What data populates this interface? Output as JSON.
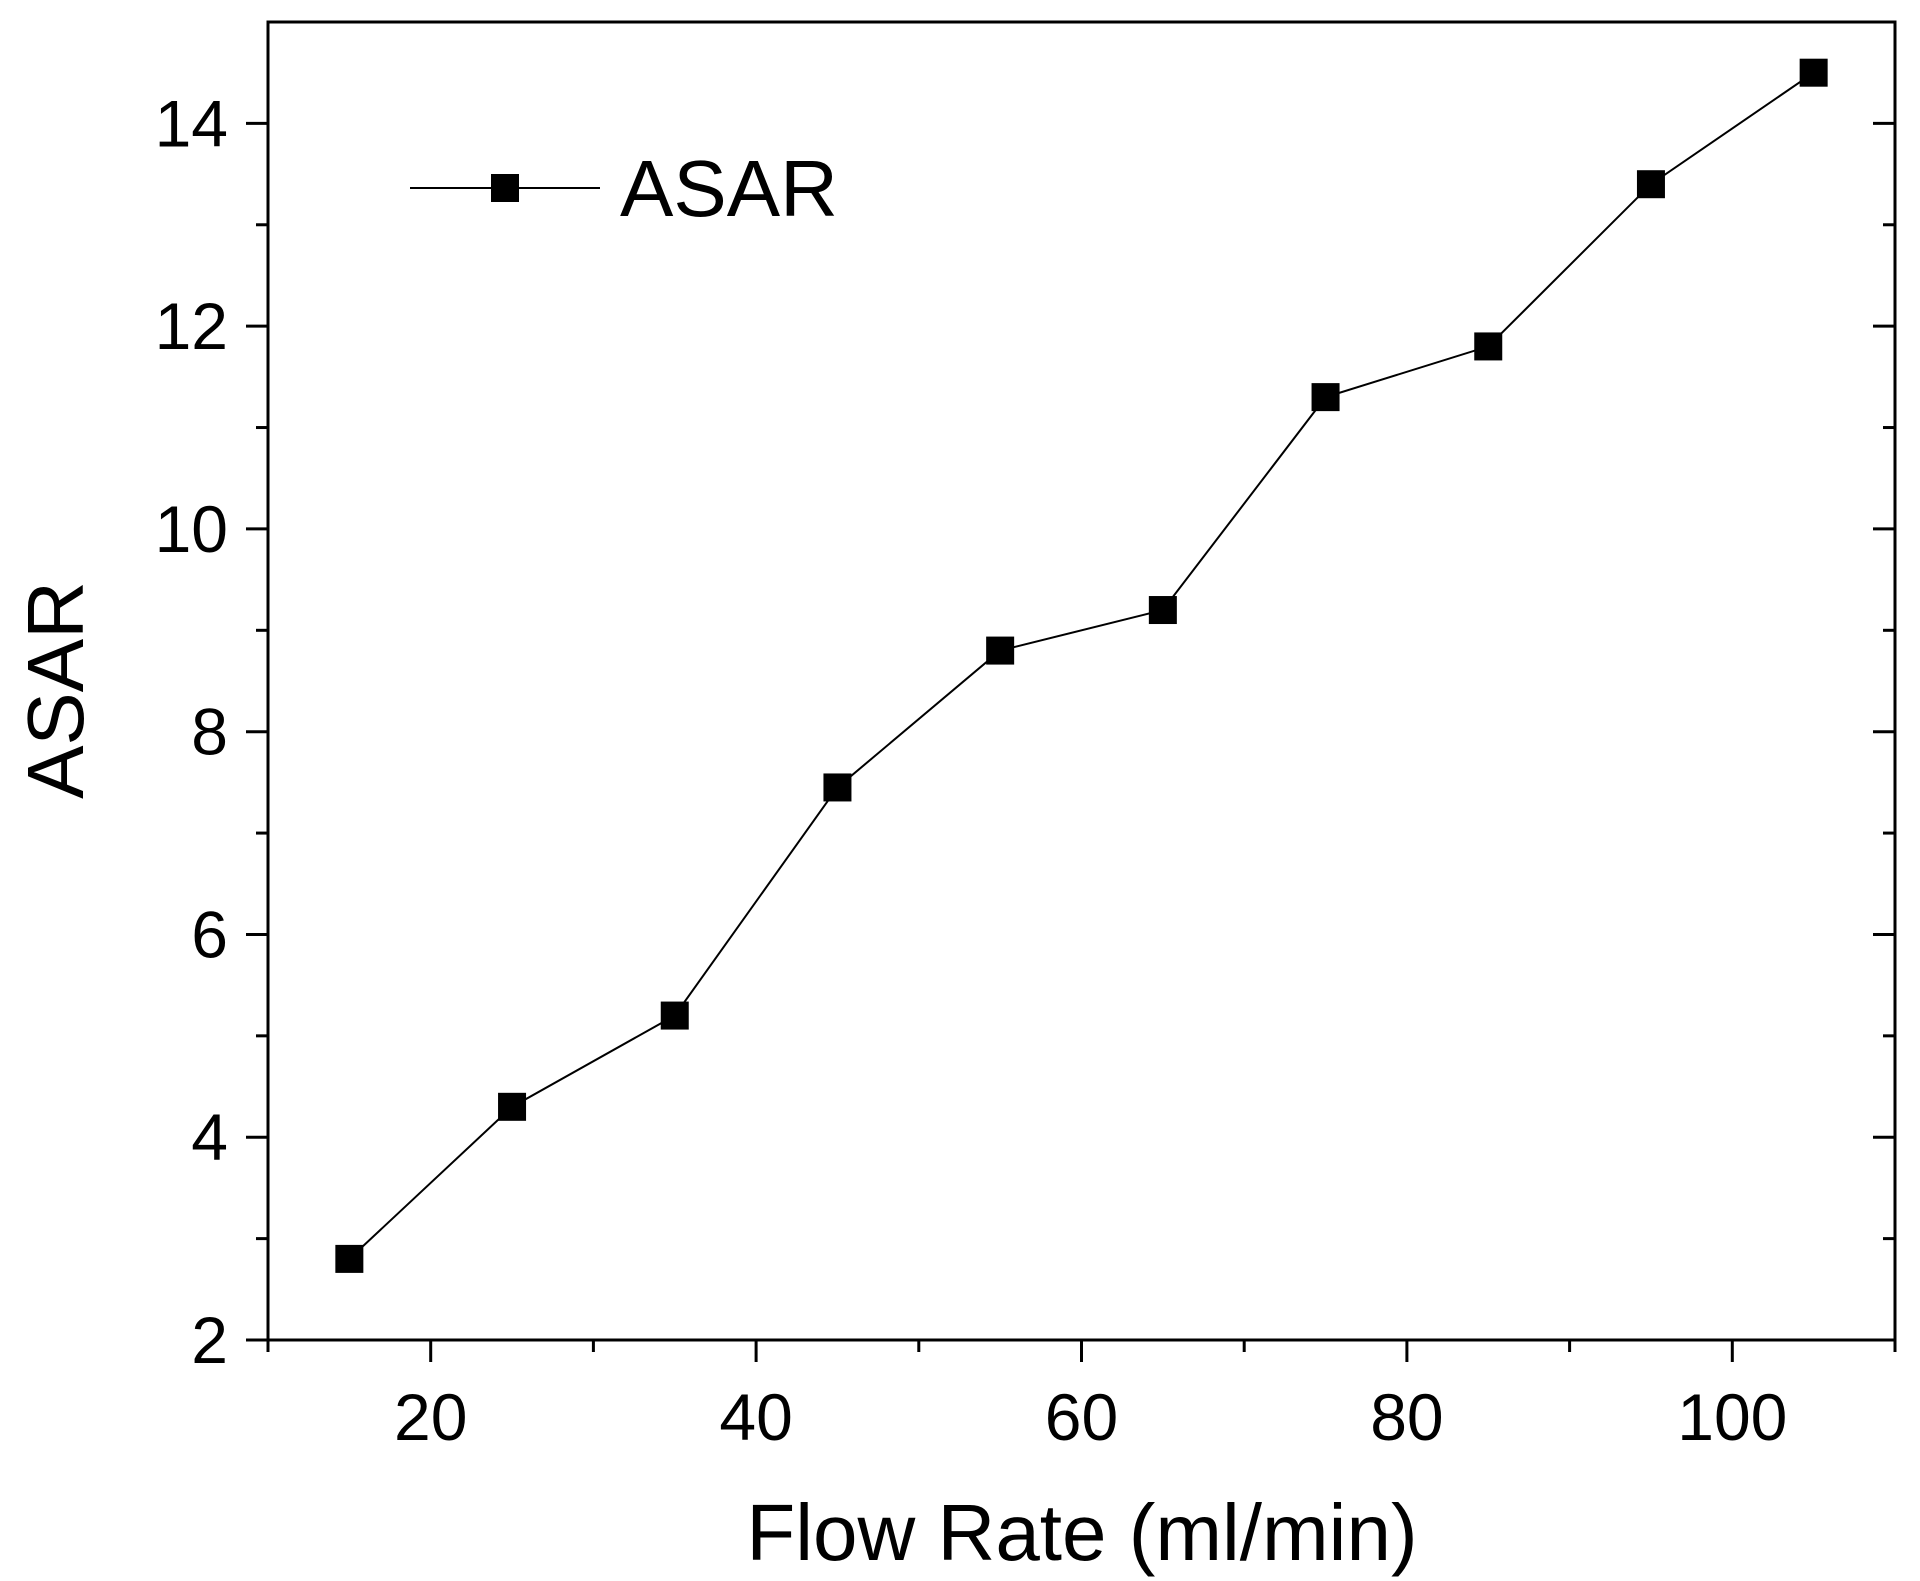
{
  "chart_data": {
    "type": "line",
    "title": "",
    "xlabel": "Flow Rate (ml/min)",
    "ylabel": "ASAR",
    "xlim": [
      10,
      110
    ],
    "ylim": [
      2,
      15
    ],
    "x_major_ticks": [
      20,
      40,
      60,
      80,
      100
    ],
    "x_minor_ticks": [
      10,
      30,
      50,
      70,
      90,
      110
    ],
    "y_major_ticks": [
      2,
      4,
      6,
      8,
      10,
      12,
      14
    ],
    "y_minor_ticks": [
      3,
      5,
      7,
      9,
      11,
      13
    ],
    "x_tick_labels": [
      "20",
      "40",
      "60",
      "80",
      "100"
    ],
    "y_tick_labels": [
      "2",
      "4",
      "6",
      "8",
      "10",
      "12",
      "14"
    ],
    "grid": false,
    "legend_position": "top-left",
    "series": [
      {
        "name": "ASAR",
        "marker": "square",
        "color": "#000000",
        "x": [
          15,
          25,
          35,
          45,
          55,
          65,
          75,
          85,
          95,
          105
        ],
        "values": [
          2.8,
          4.3,
          5.2,
          7.45,
          8.8,
          9.2,
          11.3,
          11.8,
          13.4,
          14.5
        ]
      }
    ]
  }
}
